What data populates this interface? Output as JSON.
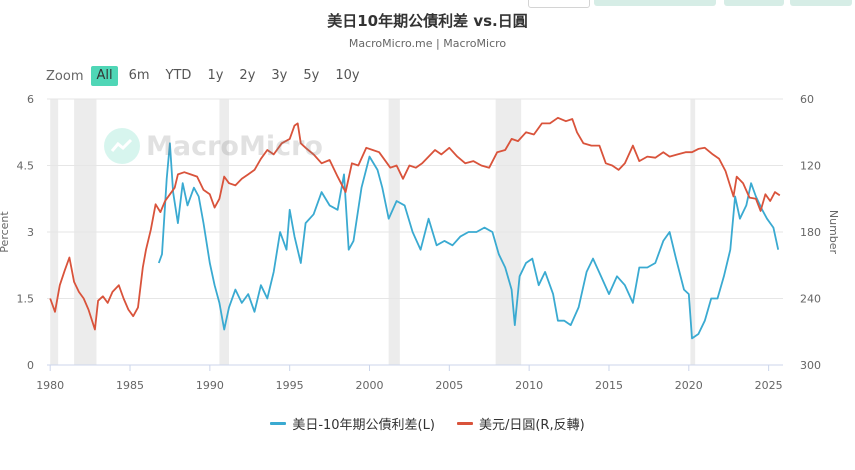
{
  "header": {
    "title": "美日10年期公債利差 vs.日圓",
    "subtitle": "MacroMicro.me | MacroMicro"
  },
  "watermark": {
    "text": "MacroMicro",
    "icon": "macromicro-logo-icon"
  },
  "toolbar": {
    "zoom_label": "Zoom",
    "ranges": [
      "All",
      "6m",
      "YTD",
      "1y",
      "2y",
      "3y",
      "5y",
      "10y"
    ],
    "active_range": "All"
  },
  "chart_data": {
    "type": "line",
    "x_type": "year",
    "xlim": [
      1979.8,
      2025.9
    ],
    "x_ticks": [
      1980,
      1985,
      1990,
      1995,
      2000,
      2005,
      2010,
      2015,
      2020,
      2025
    ],
    "left_axis": {
      "label": "Percent",
      "ylim": [
        0,
        6
      ],
      "ticks": [
        0,
        1.5,
        3,
        4.5,
        6
      ]
    },
    "right_axis": {
      "label": "Number",
      "ylim": [
        60,
        300
      ],
      "reversed": true,
      "ticks": [
        60,
        120,
        180,
        240,
        300
      ]
    },
    "grid": "horizontal",
    "legend_position": "bottom",
    "recession_bands": [
      [
        1980.0,
        1980.5
      ],
      [
        1981.5,
        1982.9
      ],
      [
        1990.6,
        1991.2
      ],
      [
        2001.2,
        2001.9
      ],
      [
        2007.9,
        2009.5
      ],
      [
        2020.1,
        2020.4
      ]
    ],
    "series": [
      {
        "name": "美日-10年期公債利差(L)",
        "axis": "left",
        "color": "#3aaad1",
        "points": [
          [
            1986.8,
            2.3
          ],
          [
            1987.0,
            2.5
          ],
          [
            1987.3,
            4.2
          ],
          [
            1987.5,
            5.0
          ],
          [
            1987.7,
            3.9
          ],
          [
            1988.0,
            3.2
          ],
          [
            1988.3,
            4.1
          ],
          [
            1988.6,
            3.6
          ],
          [
            1989.0,
            4.0
          ],
          [
            1989.3,
            3.8
          ],
          [
            1989.6,
            3.2
          ],
          [
            1990.0,
            2.3
          ],
          [
            1990.3,
            1.8
          ],
          [
            1990.6,
            1.4
          ],
          [
            1990.9,
            0.8
          ],
          [
            1991.2,
            1.3
          ],
          [
            1991.6,
            1.7
          ],
          [
            1992.0,
            1.4
          ],
          [
            1992.4,
            1.6
          ],
          [
            1992.8,
            1.2
          ],
          [
            1993.2,
            1.8
          ],
          [
            1993.6,
            1.5
          ],
          [
            1994.0,
            2.1
          ],
          [
            1994.4,
            3.0
          ],
          [
            1994.8,
            2.6
          ],
          [
            1995.0,
            3.5
          ],
          [
            1995.3,
            2.9
          ],
          [
            1995.7,
            2.3
          ],
          [
            1996.0,
            3.2
          ],
          [
            1996.5,
            3.4
          ],
          [
            1997.0,
            3.9
          ],
          [
            1997.5,
            3.6
          ],
          [
            1998.0,
            3.5
          ],
          [
            1998.4,
            4.3
          ],
          [
            1998.7,
            2.6
          ],
          [
            1999.0,
            2.8
          ],
          [
            1999.5,
            4.0
          ],
          [
            2000.0,
            4.7
          ],
          [
            2000.5,
            4.4
          ],
          [
            2000.8,
            4.0
          ],
          [
            2001.2,
            3.3
          ],
          [
            2001.7,
            3.7
          ],
          [
            2002.2,
            3.6
          ],
          [
            2002.7,
            3.0
          ],
          [
            2003.2,
            2.6
          ],
          [
            2003.7,
            3.3
          ],
          [
            2004.2,
            2.7
          ],
          [
            2004.7,
            2.8
          ],
          [
            2005.2,
            2.7
          ],
          [
            2005.7,
            2.9
          ],
          [
            2006.2,
            3.0
          ],
          [
            2006.7,
            3.0
          ],
          [
            2007.2,
            3.1
          ],
          [
            2007.7,
            3.0
          ],
          [
            2008.1,
            2.5
          ],
          [
            2008.5,
            2.2
          ],
          [
            2008.9,
            1.7
          ],
          [
            2009.1,
            0.9
          ],
          [
            2009.4,
            2.0
          ],
          [
            2009.8,
            2.3
          ],
          [
            2010.2,
            2.4
          ],
          [
            2010.6,
            1.8
          ],
          [
            2011.0,
            2.1
          ],
          [
            2011.5,
            1.6
          ],
          [
            2011.8,
            1.0
          ],
          [
            2012.2,
            1.0
          ],
          [
            2012.6,
            0.9
          ],
          [
            2013.1,
            1.3
          ],
          [
            2013.6,
            2.1
          ],
          [
            2014.0,
            2.4
          ],
          [
            2014.5,
            2.0
          ],
          [
            2015.0,
            1.6
          ],
          [
            2015.5,
            2.0
          ],
          [
            2016.0,
            1.8
          ],
          [
            2016.5,
            1.4
          ],
          [
            2016.9,
            2.2
          ],
          [
            2017.4,
            2.2
          ],
          [
            2017.9,
            2.3
          ],
          [
            2018.4,
            2.8
          ],
          [
            2018.8,
            3.0
          ],
          [
            2019.2,
            2.4
          ],
          [
            2019.7,
            1.7
          ],
          [
            2020.0,
            1.6
          ],
          [
            2020.2,
            0.6
          ],
          [
            2020.6,
            0.7
          ],
          [
            2021.0,
            1.0
          ],
          [
            2021.4,
            1.5
          ],
          [
            2021.8,
            1.5
          ],
          [
            2022.2,
            2.0
          ],
          [
            2022.6,
            2.6
          ],
          [
            2022.9,
            3.8
          ],
          [
            2023.2,
            3.3
          ],
          [
            2023.6,
            3.6
          ],
          [
            2023.9,
            4.1
          ],
          [
            2024.2,
            3.8
          ],
          [
            2024.6,
            3.5
          ],
          [
            2024.9,
            3.3
          ],
          [
            2025.3,
            3.1
          ],
          [
            2025.6,
            2.6
          ]
        ]
      },
      {
        "name": "美元/日圓(R,反轉)",
        "axis": "right",
        "color": "#d9533b",
        "points": [
          [
            1980.0,
            240
          ],
          [
            1980.3,
            252
          ],
          [
            1980.6,
            228
          ],
          [
            1980.9,
            215
          ],
          [
            1981.2,
            203
          ],
          [
            1981.5,
            225
          ],
          [
            1981.8,
            234
          ],
          [
            1982.1,
            240
          ],
          [
            1982.4,
            250
          ],
          [
            1982.8,
            268
          ],
          [
            1983.0,
            242
          ],
          [
            1983.3,
            238
          ],
          [
            1983.6,
            244
          ],
          [
            1983.9,
            234
          ],
          [
            1984.3,
            228
          ],
          [
            1984.6,
            240
          ],
          [
            1984.9,
            250
          ],
          [
            1985.2,
            256
          ],
          [
            1985.5,
            248
          ],
          [
            1985.8,
            212
          ],
          [
            1986.0,
            196
          ],
          [
            1986.3,
            178
          ],
          [
            1986.6,
            155
          ],
          [
            1986.9,
            162
          ],
          [
            1987.2,
            152
          ],
          [
            1987.5,
            146
          ],
          [
            1987.8,
            140
          ],
          [
            1988.0,
            128
          ],
          [
            1988.4,
            126
          ],
          [
            1988.8,
            128
          ],
          [
            1989.2,
            130
          ],
          [
            1989.6,
            142
          ],
          [
            1990.0,
            146
          ],
          [
            1990.3,
            158
          ],
          [
            1990.6,
            150
          ],
          [
            1990.9,
            130
          ],
          [
            1991.2,
            136
          ],
          [
            1991.6,
            138
          ],
          [
            1992.0,
            132
          ],
          [
            1992.4,
            128
          ],
          [
            1992.8,
            124
          ],
          [
            1993.2,
            114
          ],
          [
            1993.6,
            106
          ],
          [
            1994.0,
            110
          ],
          [
            1994.5,
            100
          ],
          [
            1995.0,
            96
          ],
          [
            1995.3,
            84
          ],
          [
            1995.5,
            82
          ],
          [
            1995.7,
            100
          ],
          [
            1996.0,
            104
          ],
          [
            1996.5,
            110
          ],
          [
            1997.0,
            118
          ],
          [
            1997.5,
            115
          ],
          [
            1998.0,
            130
          ],
          [
            1998.5,
            144
          ],
          [
            1998.9,
            118
          ],
          [
            1999.3,
            120
          ],
          [
            1999.8,
            104
          ],
          [
            2000.2,
            106
          ],
          [
            2000.6,
            108
          ],
          [
            2000.9,
            114
          ],
          [
            2001.3,
            122
          ],
          [
            2001.7,
            120
          ],
          [
            2002.1,
            132
          ],
          [
            2002.5,
            120
          ],
          [
            2002.9,
            122
          ],
          [
            2003.3,
            118
          ],
          [
            2003.7,
            112
          ],
          [
            2004.1,
            106
          ],
          [
            2004.5,
            110
          ],
          [
            2005.0,
            104
          ],
          [
            2005.5,
            112
          ],
          [
            2006.0,
            118
          ],
          [
            2006.5,
            116
          ],
          [
            2007.0,
            120
          ],
          [
            2007.5,
            122
          ],
          [
            2008.0,
            108
          ],
          [
            2008.5,
            106
          ],
          [
            2008.9,
            96
          ],
          [
            2009.3,
            98
          ],
          [
            2009.8,
            90
          ],
          [
            2010.3,
            92
          ],
          [
            2010.8,
            82
          ],
          [
            2011.3,
            82
          ],
          [
            2011.8,
            77
          ],
          [
            2012.3,
            80
          ],
          [
            2012.7,
            78
          ],
          [
            2013.0,
            90
          ],
          [
            2013.4,
            100
          ],
          [
            2013.9,
            102
          ],
          [
            2014.4,
            102
          ],
          [
            2014.8,
            118
          ],
          [
            2015.2,
            120
          ],
          [
            2015.6,
            124
          ],
          [
            2016.0,
            118
          ],
          [
            2016.5,
            102
          ],
          [
            2016.9,
            116
          ],
          [
            2017.4,
            112
          ],
          [
            2017.9,
            113
          ],
          [
            2018.4,
            108
          ],
          [
            2018.8,
            112
          ],
          [
            2019.3,
            110
          ],
          [
            2019.8,
            108
          ],
          [
            2020.2,
            108
          ],
          [
            2020.6,
            105
          ],
          [
            2021.0,
            104
          ],
          [
            2021.5,
            110
          ],
          [
            2021.9,
            114
          ],
          [
            2022.3,
            125
          ],
          [
            2022.8,
            148
          ],
          [
            2023.0,
            130
          ],
          [
            2023.4,
            136
          ],
          [
            2023.8,
            149
          ],
          [
            2024.2,
            150
          ],
          [
            2024.5,
            161
          ],
          [
            2024.8,
            146
          ],
          [
            2025.1,
            152
          ],
          [
            2025.4,
            144
          ],
          [
            2025.7,
            147
          ]
        ]
      }
    ]
  }
}
